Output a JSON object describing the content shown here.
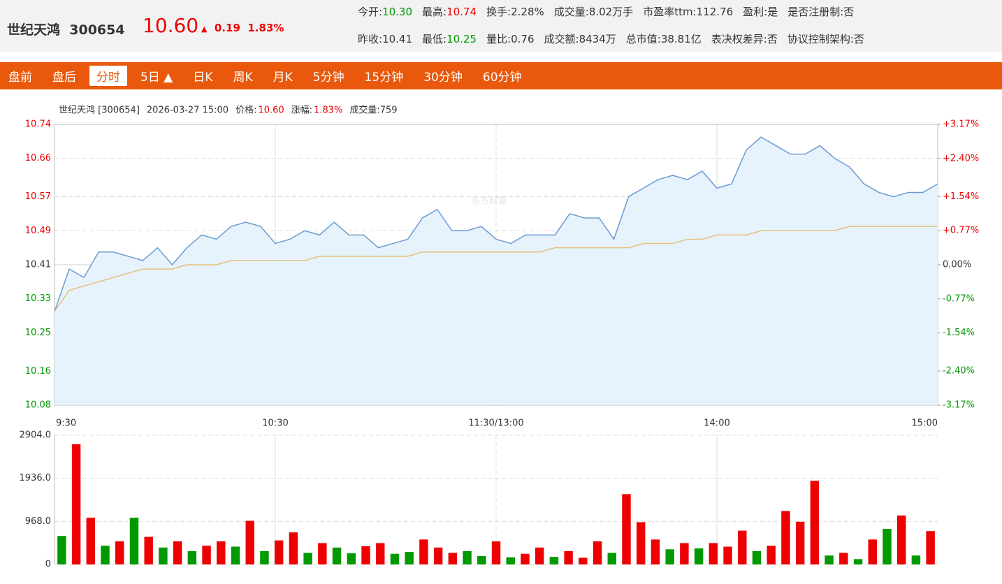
{
  "header": {
    "name": "世纪天鸿",
    "code": "300654",
    "price": "10.60",
    "arrow": "▲",
    "change": "0.19",
    "pct": "1.83%",
    "stats": [
      [
        {
          "label": "今开:",
          "value": "10.30",
          "color": "#090"
        },
        {
          "label": "最高:",
          "value": "10.74",
          "color": "#e00"
        },
        {
          "label": "换手:",
          "value": "2.28%"
        },
        {
          "label": "成交量:",
          "value": "8.02万手"
        },
        {
          "label": "市盈率ttm:",
          "value": "112.76"
        },
        {
          "label": "盈利:",
          "value": "是"
        },
        {
          "label": "是否注册制:",
          "value": "否"
        }
      ],
      [
        {
          "label": "昨收:",
          "value": "10.41"
        },
        {
          "label": "最低:",
          "value": "10.25",
          "color": "#090"
        },
        {
          "label": "量比:",
          "value": "0.76"
        },
        {
          "label": "成交额:",
          "value": "8434万"
        },
        {
          "label": "总市值:",
          "value": "38.81亿"
        },
        {
          "label": "表决权差异:",
          "value": "否"
        },
        {
          "label": "协议控制架构:",
          "value": "否"
        }
      ]
    ]
  },
  "tabs": {
    "items": [
      "盘前",
      "盘后",
      "分时",
      "5日 ▲",
      "日K",
      "周K",
      "月K",
      "5分钟",
      "15分钟",
      "30分钟",
      "60分钟"
    ],
    "active": 2
  },
  "info": [
    "世纪天鸿 [300654]",
    "2026-03-27 15:00",
    "价格:",
    "10.60",
    "涨幅:",
    "1.83%",
    "成交量:759"
  ],
  "watermark": "东方财富",
  "chart_data": [
    {
      "type": "line",
      "grid": true,
      "x": [
        0,
        4,
        8,
        12,
        16,
        20,
        24,
        28,
        32,
        36,
        40,
        44,
        48,
        52,
        56,
        60,
        64,
        68,
        72,
        76,
        80,
        84,
        88,
        92,
        96,
        100,
        104,
        108,
        112,
        116,
        120,
        124,
        128,
        132,
        136,
        140,
        144,
        148,
        152,
        156,
        160,
        164,
        168,
        172,
        176,
        180,
        184,
        188,
        192,
        196,
        200,
        204,
        208,
        212,
        216,
        220,
        224,
        228,
        232,
        236,
        240
      ],
      "xlim": [
        0,
        240
      ],
      "xticks": [
        {
          "value": 0,
          "label": "9:30"
        },
        {
          "value": 60,
          "label": "10:30"
        },
        {
          "value": 120,
          "label": "11:30/13:00"
        },
        {
          "value": 180,
          "label": "14:00"
        },
        {
          "value": 240,
          "label": "15:00"
        }
      ],
      "ylim": [
        10.08,
        10.74
      ],
      "yticks": [
        10.08,
        10.16,
        10.25,
        10.33,
        10.41,
        10.49,
        10.57,
        10.66,
        10.74
      ],
      "y2lim": [
        -3.17,
        3.17
      ],
      "y2ticks": [
        {
          "value": -3.17,
          "label": "-3.17%"
        },
        {
          "value": -2.4,
          "label": "-2.40%"
        },
        {
          "value": -1.54,
          "label": "-1.54%"
        },
        {
          "value": -0.77,
          "label": "-0.77%"
        },
        {
          "value": 0,
          "label": "0.00%"
        },
        {
          "value": 0.77,
          "label": "+0.77%"
        },
        {
          "value": 1.54,
          "label": "+1.54%"
        },
        {
          "value": 2.4,
          "label": "+2.40%"
        },
        {
          "value": 3.17,
          "label": "+3.17%"
        }
      ],
      "series": [
        {
          "color": "#6b9bd2",
          "values": [
            10.3,
            10.4,
            10.38,
            10.44,
            10.44,
            10.43,
            10.42,
            10.45,
            10.41,
            10.45,
            10.48,
            10.47,
            10.5,
            10.51,
            10.5,
            10.46,
            10.47,
            10.49,
            10.48,
            10.51,
            10.48,
            10.48,
            10.45,
            10.46,
            10.47,
            10.52,
            10.54,
            10.49,
            10.49,
            10.5,
            10.47,
            10.46,
            10.48,
            10.48,
            10.48,
            10.53,
            10.52,
            10.52,
            10.47,
            10.57,
            10.59,
            10.61,
            10.62,
            10.61,
            10.63,
            10.59,
            10.6,
            10.68,
            10.71,
            10.69,
            10.67,
            10.67,
            10.69,
            10.66,
            10.64,
            10.6,
            10.58,
            10.57,
            10.58,
            10.58,
            10.6
          ]
        },
        {
          "color": "#e5c07b",
          "values": [
            10.3,
            10.35,
            10.36,
            10.37,
            10.38,
            10.39,
            10.4,
            10.4,
            10.4,
            10.41,
            10.41,
            10.41,
            10.42,
            10.42,
            10.42,
            10.42,
            10.42,
            10.42,
            10.43,
            10.43,
            10.43,
            10.43,
            10.43,
            10.43,
            10.43,
            10.44,
            10.44,
            10.44,
            10.44,
            10.44,
            10.44,
            10.44,
            10.44,
            10.44,
            10.45,
            10.45,
            10.45,
            10.45,
            10.45,
            10.45,
            10.46,
            10.46,
            10.46,
            10.47,
            10.47,
            10.48,
            10.48,
            10.48,
            10.49,
            10.49,
            10.49,
            10.49,
            10.49,
            10.49,
            10.5,
            10.5,
            10.5,
            10.5,
            10.5,
            10.5,
            10.5
          ]
        }
      ]
    },
    {
      "type": "bar",
      "grid": true,
      "xlim": [
        0,
        240
      ],
      "ylim": [
        0,
        2904
      ],
      "yticks": [
        0,
        {
          "value": 968,
          "label": "968.0"
        },
        {
          "value": 1936,
          "label": "1936.0"
        },
        {
          "value": 2904,
          "label": "2904.0"
        }
      ],
      "values": [
        640,
        2700,
        1050,
        420,
        520,
        1050,
        620,
        380,
        520,
        300,
        420,
        520,
        400,
        980,
        300,
        540,
        720,
        260,
        480,
        380,
        250,
        410,
        480,
        240,
        280,
        560,
        380,
        260,
        300,
        190,
        520,
        160,
        240,
        380,
        170,
        300,
        150,
        520,
        260,
        1580,
        950,
        560,
        340,
        480,
        360,
        480,
        400,
        760,
        300,
        420,
        1200,
        960,
        1880,
        200,
        260,
        120,
        560,
        800,
        1100,
        200,
        750
      ],
      "colors": [
        "#090",
        "#e00",
        "#e00",
        "#090",
        "#e00",
        "#090",
        "#e00",
        "#090",
        "#e00",
        "#090",
        "#e00",
        "#e00",
        "#090",
        "#e00",
        "#090",
        "#e00",
        "#e00",
        "#090",
        "#e00",
        "#090",
        "#090",
        "#e00",
        "#e00",
        "#090",
        "#090",
        "#e00",
        "#e00",
        "#e00",
        "#090",
        "#090",
        "#e00",
        "#090",
        "#e00",
        "#e00",
        "#090",
        "#e00",
        "#e00",
        "#e00",
        "#090",
        "#e00",
        "#e00",
        "#e00",
        "#090",
        "#e00",
        "#090",
        "#e00",
        "#e00",
        "#e00",
        "#090",
        "#e00",
        "#e00",
        "#e00",
        "#e00",
        "#090",
        "#e00",
        "#090",
        "#e00",
        "#090",
        "#e00",
        "#090",
        "#e00"
      ]
    }
  ]
}
